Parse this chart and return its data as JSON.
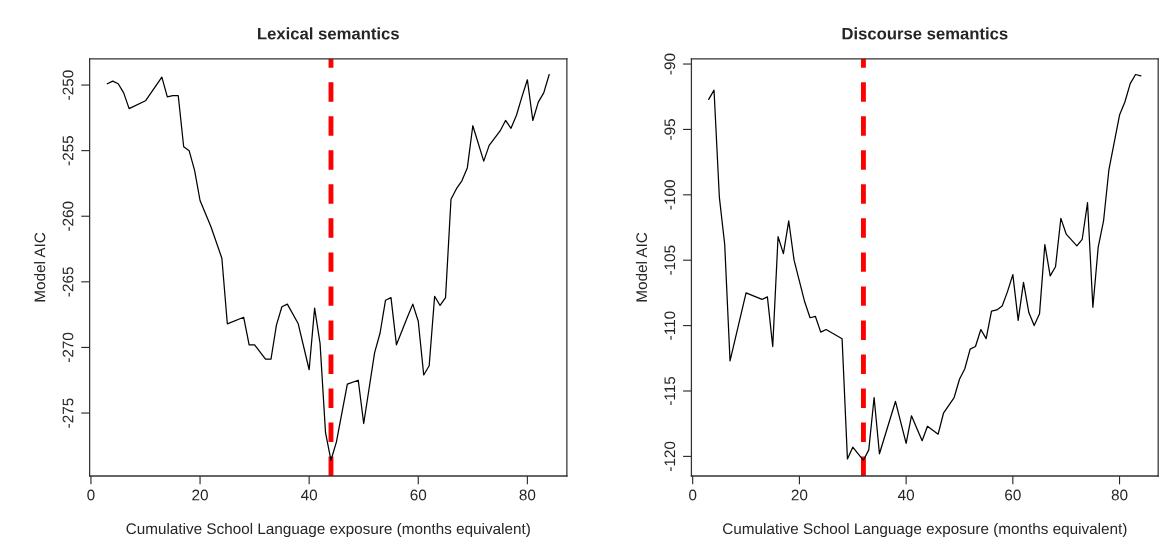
{
  "chart_data": [
    {
      "type": "line",
      "title": "Lexical semantics",
      "xlabel": "Cumulative School Language exposure (months equivalent)",
      "ylabel": "Model AIC",
      "x": [
        3,
        4,
        5,
        6,
        7,
        10,
        13,
        14,
        15,
        16,
        17,
        18,
        19,
        20,
        22,
        24,
        25,
        28,
        29,
        30,
        32,
        33,
        34,
        35,
        36,
        38,
        40,
        41,
        42,
        43,
        44,
        45,
        47,
        49,
        50,
        52,
        53,
        54,
        55,
        56,
        58,
        59,
        60,
        61,
        62,
        63,
        64,
        65,
        66,
        67,
        68,
        69,
        70,
        72,
        73,
        75,
        76,
        77,
        78,
        79,
        80,
        81,
        82,
        83,
        84
      ],
      "series": [
        {
          "color": "#000000",
          "values": [
            -249.9,
            -249.7,
            -249.9,
            -250.6,
            -251.8,
            -251.2,
            -249.4,
            -250.9,
            -250.8,
            -250.8,
            -254.7,
            -255.0,
            -256.5,
            -258.8,
            -260.8,
            -263.2,
            -268.2,
            -267.7,
            -269.8,
            -269.8,
            -270.9,
            -270.9,
            -268.3,
            -266.9,
            -266.7,
            -268.2,
            -271.7,
            -267.0,
            -269.7,
            -276.5,
            -278.6,
            -277.2,
            -272.8,
            -272.5,
            -275.8,
            -270.4,
            -268.9,
            -266.4,
            -266.2,
            -269.8,
            -267.7,
            -266.7,
            -268.0,
            -272.1,
            -271.4,
            -266.1,
            -266.8,
            -266.2,
            -258.7,
            -257.9,
            -257.3,
            -256.3,
            -253.1,
            -255.8,
            -254.6,
            -253.5,
            -252.7,
            -253.3,
            -252.3,
            -250.9,
            -249.6,
            -252.7,
            -251.3,
            -250.6,
            -249.2
          ]
        }
      ],
      "xlim": [
        -0.24,
        87.24
      ],
      "xticks": [
        0,
        20,
        40,
        60,
        80
      ],
      "ylim": [
        -279.8,
        -248.0
      ],
      "yticks": [
        -275,
        -270,
        -265,
        -260,
        -255,
        -250
      ],
      "ref_lines": [
        {
          "axis": "x",
          "value": 44,
          "color": "#ff0000",
          "line_style": "dashed"
        }
      ],
      "grid": false,
      "legend": false,
      "marker": "none",
      "line_style": "solid"
    },
    {
      "type": "line",
      "title": "Discourse semantics",
      "xlabel": "Cumulative School Language exposure (months equivalent)",
      "ylabel": "Model AIC",
      "x": [
        3,
        4,
        5,
        6,
        7,
        10,
        13,
        14,
        15,
        16,
        17,
        18,
        19,
        20,
        21,
        22,
        23,
        24,
        25,
        28,
        29,
        30,
        32,
        33,
        34,
        35,
        38,
        40,
        41,
        43,
        44,
        46,
        47,
        49,
        50,
        51,
        52,
        53,
        54,
        55,
        56,
        57,
        58,
        59,
        60,
        61,
        62,
        63,
        64,
        65,
        66,
        67,
        68,
        69,
        70,
        72,
        73,
        74,
        75,
        76,
        77,
        78,
        80,
        81,
        82,
        83,
        84
      ],
      "series": [
        {
          "color": "#000000",
          "values": [
            -92.7,
            -92.0,
            -100.2,
            -103.8,
            -112.7,
            -107.5,
            -108.0,
            -107.8,
            -111.6,
            -103.2,
            -104.5,
            -102.0,
            -105.0,
            -106.6,
            -108.2,
            -109.4,
            -109.3,
            -110.5,
            -110.3,
            -111.0,
            -120.2,
            -119.3,
            -120.3,
            -119.5,
            -115.5,
            -119.8,
            -115.8,
            -119.0,
            -116.9,
            -118.8,
            -117.7,
            -118.3,
            -116.7,
            -115.5,
            -114.1,
            -113.3,
            -111.8,
            -111.6,
            -110.3,
            -111.0,
            -108.9,
            -108.8,
            -108.5,
            -107.4,
            -106.1,
            -109.6,
            -106.7,
            -109.0,
            -110.0,
            -109.1,
            -103.8,
            -106.2,
            -105.5,
            -101.8,
            -103.0,
            -103.9,
            -103.4,
            -100.6,
            -108.6,
            -104.0,
            -102.0,
            -98.1,
            -93.9,
            -92.9,
            -91.5,
            -90.8,
            -90.9
          ]
        }
      ],
      "xlim": [
        -0.24,
        87.24
      ],
      "xticks": [
        0,
        20,
        40,
        60,
        80
      ],
      "ylim": [
        -121.5,
        -89.6
      ],
      "yticks": [
        -120,
        -115,
        -110,
        -105,
        -100,
        -95,
        -90
      ],
      "ref_lines": [
        {
          "axis": "x",
          "value": 32,
          "color": "#ff0000",
          "line_style": "dashed"
        }
      ],
      "grid": false,
      "legend": false,
      "marker": "none",
      "line_style": "solid"
    }
  ]
}
